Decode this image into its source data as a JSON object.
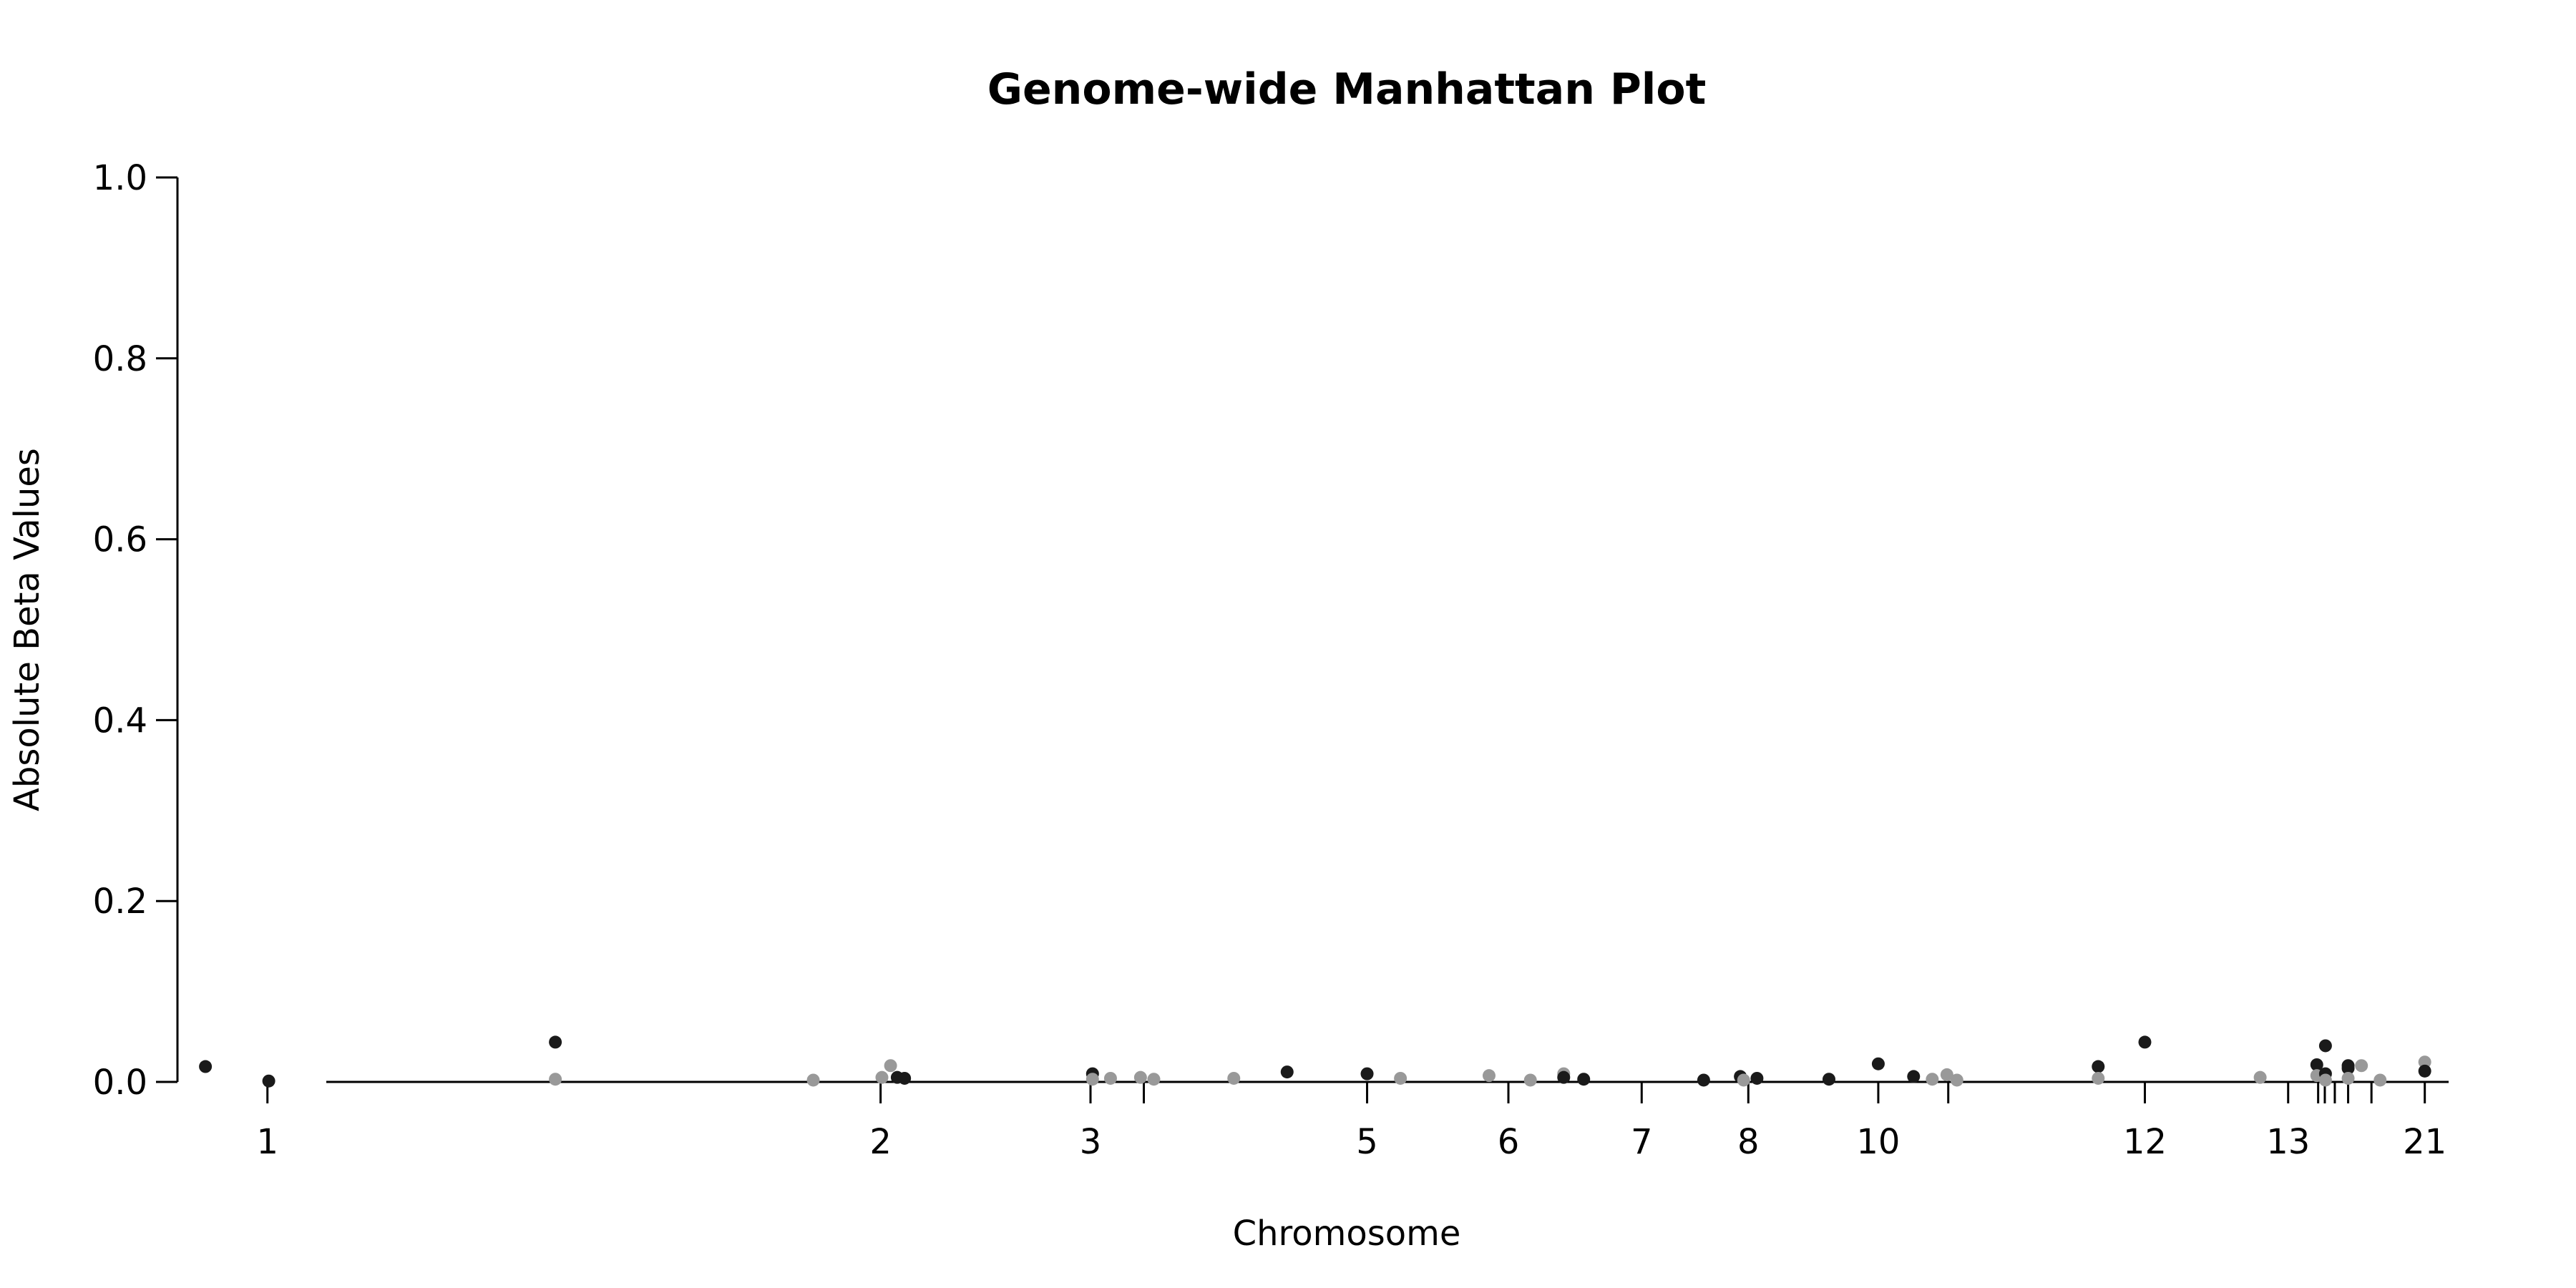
{
  "chart_data": {
    "type": "scatter",
    "title": "Genome-wide Manhattan Plot",
    "xlabel": "Chromosome",
    "ylabel": "Absolute Beta Values",
    "ylim": [
      0,
      1
    ],
    "yticks": [
      "0.0",
      "0.2",
      "0.4",
      "0.6",
      "0.8",
      "1.0"
    ],
    "xticks": [
      {
        "label": "1",
        "x": 0
      },
      {
        "label": "2",
        "x": 9.2
      },
      {
        "label": "3",
        "x": 12.35
      },
      {
        "label": "",
        "x": 13.15
      },
      {
        "label": "5",
        "x": 16.5
      },
      {
        "label": "6",
        "x": 18.62
      },
      {
        "label": "7",
        "x": 20.62
      },
      {
        "label": "8",
        "x": 22.22
      },
      {
        "label": "10",
        "x": 24.17
      },
      {
        "label": "",
        "x": 25.22
      },
      {
        "label": "12",
        "x": 28.17
      },
      {
        "label": "13",
        "x": 30.32
      },
      {
        "label": "",
        "x": 30.77
      },
      {
        "label": "",
        "x": 30.87
      },
      {
        "label": "",
        "x": 31.02
      },
      {
        "label": "",
        "x": 31.22
      },
      {
        "label": "",
        "x": 31.57
      },
      {
        "label": "21",
        "x": 32.37
      }
    ],
    "xlim": [
      -1.35,
      33.05
    ],
    "grid": false,
    "legend": "none",
    "colors": {
      "dark": "#1a1a1a",
      "light": "#999999"
    },
    "points": [
      {
        "x": -0.93,
        "y": 0.017,
        "c": "dark"
      },
      {
        "x": 0.02,
        "y": 0.001,
        "c": "dark"
      },
      {
        "x": 4.32,
        "y": 0.044,
        "c": "dark"
      },
      {
        "x": 4.32,
        "y": 0.003,
        "c": "light"
      },
      {
        "x": 8.19,
        "y": 0.002,
        "c": "light"
      },
      {
        "x": 9.22,
        "y": 0.005,
        "c": "light"
      },
      {
        "x": 9.35,
        "y": 0.018,
        "c": "light"
      },
      {
        "x": 9.45,
        "y": 0.005,
        "c": "dark"
      },
      {
        "x": 9.56,
        "y": 0.004,
        "c": "dark"
      },
      {
        "x": 12.38,
        "y": 0.009,
        "c": "dark"
      },
      {
        "x": 12.38,
        "y": 0.003,
        "c": "light"
      },
      {
        "x": 12.65,
        "y": 0.004,
        "c": "light"
      },
      {
        "x": 13.1,
        "y": 0.005,
        "c": "light"
      },
      {
        "x": 13.3,
        "y": 0.003,
        "c": "light"
      },
      {
        "x": 14.5,
        "y": 0.004,
        "c": "light"
      },
      {
        "x": 15.3,
        "y": 0.011,
        "c": "dark"
      },
      {
        "x": 16.5,
        "y": 0.009,
        "c": "dark"
      },
      {
        "x": 17.0,
        "y": 0.004,
        "c": "light"
      },
      {
        "x": 18.33,
        "y": 0.007,
        "c": "light"
      },
      {
        "x": 18.95,
        "y": 0.002,
        "c": "light"
      },
      {
        "x": 19.45,
        "y": 0.009,
        "c": "light"
      },
      {
        "x": 19.45,
        "y": 0.005,
        "c": "dark"
      },
      {
        "x": 19.75,
        "y": 0.003,
        "c": "dark"
      },
      {
        "x": 21.55,
        "y": 0.002,
        "c": "dark"
      },
      {
        "x": 22.1,
        "y": 0.006,
        "c": "dark"
      },
      {
        "x": 22.15,
        "y": 0.002,
        "c": "light"
      },
      {
        "x": 22.35,
        "y": 0.004,
        "c": "dark"
      },
      {
        "x": 23.43,
        "y": 0.003,
        "c": "dark"
      },
      {
        "x": 24.17,
        "y": 0.02,
        "c": "dark"
      },
      {
        "x": 24.7,
        "y": 0.006,
        "c": "dark"
      },
      {
        "x": 24.98,
        "y": 0.003,
        "c": "light"
      },
      {
        "x": 25.2,
        "y": 0.008,
        "c": "light"
      },
      {
        "x": 25.35,
        "y": 0.002,
        "c": "light"
      },
      {
        "x": 27.47,
        "y": 0.017,
        "c": "dark"
      },
      {
        "x": 27.47,
        "y": 0.004,
        "c": "light"
      },
      {
        "x": 28.17,
        "y": 0.044,
        "c": "dark"
      },
      {
        "x": 29.9,
        "y": 0.005,
        "c": "light"
      },
      {
        "x": 30.75,
        "y": 0.019,
        "c": "dark"
      },
      {
        "x": 30.75,
        "y": 0.007,
        "c": "light"
      },
      {
        "x": 30.88,
        "y": 0.04,
        "c": "dark"
      },
      {
        "x": 30.88,
        "y": 0.009,
        "c": "dark"
      },
      {
        "x": 30.88,
        "y": 0.002,
        "c": "light"
      },
      {
        "x": 31.22,
        "y": 0.018,
        "c": "dark"
      },
      {
        "x": 31.22,
        "y": 0.015,
        "c": "dark"
      },
      {
        "x": 31.22,
        "y": 0.004,
        "c": "light"
      },
      {
        "x": 31.42,
        "y": 0.018,
        "c": "light"
      },
      {
        "x": 31.7,
        "y": 0.002,
        "c": "light"
      },
      {
        "x": 32.37,
        "y": 0.022,
        "c": "light"
      },
      {
        "x": 32.37,
        "y": 0.012,
        "c": "dark"
      }
    ]
  }
}
